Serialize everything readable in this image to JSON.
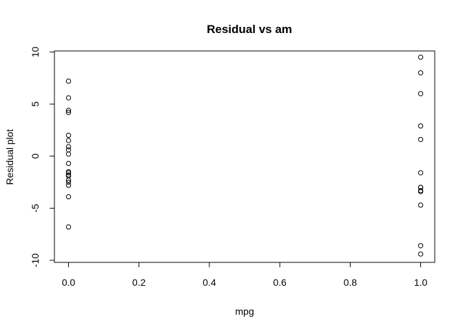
{
  "chart_data": {
    "type": "scatter",
    "title": "Residual vs am",
    "xlabel": "mpg",
    "ylabel": "Residual plot",
    "xlim": [
      -0.04,
      1.04
    ],
    "ylim": [
      -10.2,
      10.1
    ],
    "x_ticks": [
      0.0,
      0.2,
      0.4,
      0.6,
      0.8,
      1.0
    ],
    "x_tick_labels": [
      "0.0",
      "0.2",
      "0.4",
      "0.6",
      "0.8",
      "1.0"
    ],
    "y_ticks": [
      -10,
      -5,
      0,
      5,
      10
    ],
    "y_tick_labels": [
      "-10",
      "-5",
      "0",
      "5",
      "10"
    ],
    "grid": false,
    "legend": "none",
    "marker": "open-circle",
    "series": [
      {
        "x": [
          0,
          0,
          0,
          0,
          0,
          0,
          0,
          0,
          0,
          0,
          0,
          0,
          0,
          0,
          0,
          0,
          0,
          0,
          0,
          1,
          1,
          1,
          1,
          1,
          1,
          1,
          1,
          1,
          1,
          1,
          1,
          1
        ],
        "y": [
          7.2,
          5.6,
          4.4,
          4.2,
          2.0,
          1.5,
          0.9,
          0.6,
          0.2,
          -0.7,
          -1.6,
          -1.9,
          -2.3,
          -2.8,
          -3.9,
          -6.8,
          -1.5,
          -1.8,
          -2.5,
          9.5,
          8.0,
          6.0,
          2.9,
          1.6,
          -1.6,
          -3.0,
          -3.4,
          -4.7,
          -8.6,
          -9.4,
          -3.0,
          -3.3
        ]
      }
    ],
    "colors": {
      "axis": "#000000",
      "marker": "#000000",
      "background": "#ffffff"
    }
  }
}
